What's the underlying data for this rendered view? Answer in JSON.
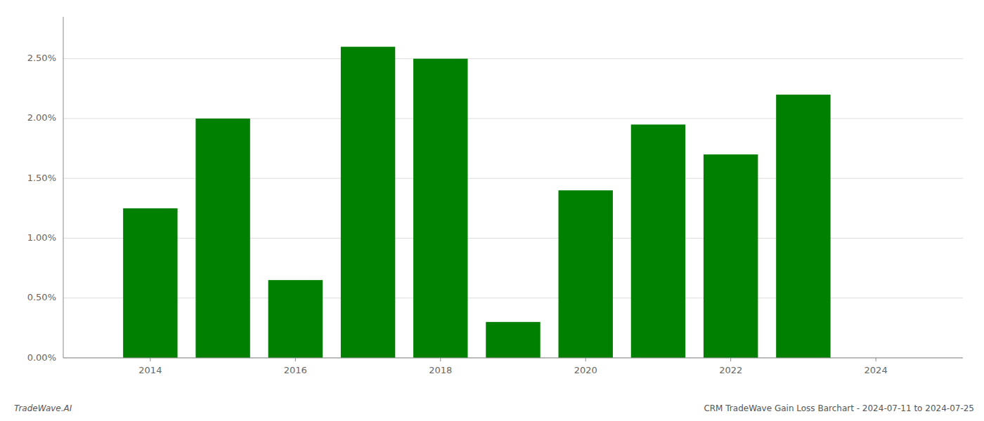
{
  "chart_data": {
    "type": "bar",
    "x": [
      2014,
      2015,
      2016,
      2017,
      2018,
      2019,
      2020,
      2021,
      2022,
      2023
    ],
    "values": [
      0.0125,
      0.02,
      0.0065,
      0.026,
      0.025,
      0.003,
      0.014,
      0.0195,
      0.017,
      0.022
    ],
    "color": "#008000",
    "xlim": [
      2012.8,
      2025.2
    ],
    "xticks": [
      2014,
      2016,
      2018,
      2020,
      2022,
      2024
    ],
    "ylim": [
      0,
      0.0285
    ],
    "yticks": [
      {
        "value": 0.0,
        "label": "0.00%"
      },
      {
        "value": 0.005,
        "label": "0.50%"
      },
      {
        "value": 0.01,
        "label": "1.00%"
      },
      {
        "value": 0.015,
        "label": "1.50%"
      },
      {
        "value": 0.02,
        "label": "2.00%"
      },
      {
        "value": 0.025,
        "label": "2.50%"
      }
    ],
    "grid": true,
    "annotations": [
      "TradeWave.AI",
      "CRM TradeWave Gain Loss Barchart - 2024-07-11 to 2024-07-25"
    ]
  }
}
